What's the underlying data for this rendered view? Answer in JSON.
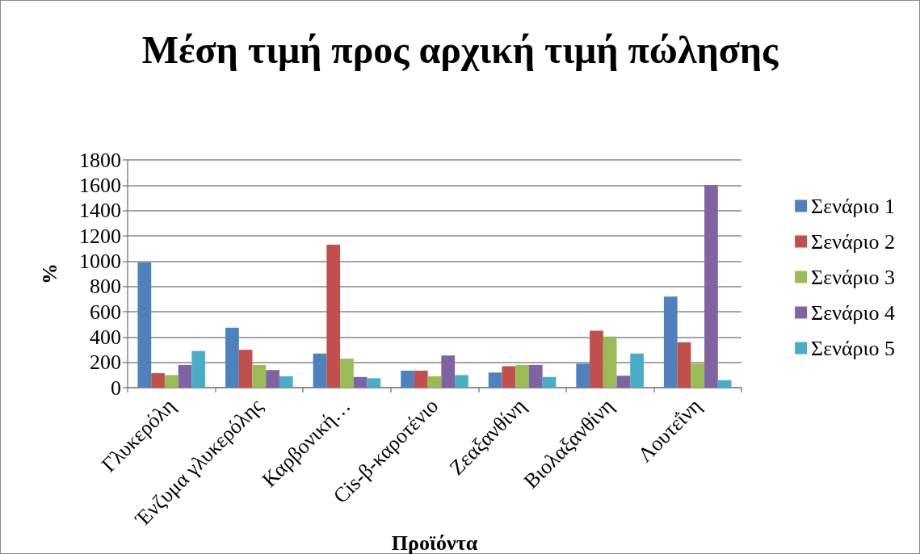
{
  "chart_data": {
    "type": "bar",
    "title": "Μέση τιμή προς αρχική τιμή πώλησης",
    "xlabel": "Προϊόντα",
    "ylabel": "%",
    "categories": [
      "Γλυκερόλη",
      "Ένζυμα γλυκερόλης",
      "Καρβονική…",
      "Cis-β-καροτένιο",
      "Ζεαξανθίνη",
      "Βιολαξανθίνη",
      "Λουτεΐνη"
    ],
    "series": [
      {
        "name": "Σενάριο 1",
        "color": "#4f81bd",
        "values": [
          990,
          475,
          270,
          135,
          120,
          190,
          720
        ]
      },
      {
        "name": "Σενάριο 2",
        "color": "#c0504d",
        "values": [
          115,
          300,
          1130,
          135,
          170,
          450,
          360
        ]
      },
      {
        "name": "Σενάριο 3",
        "color": "#9bbb59",
        "values": [
          100,
          180,
          230,
          90,
          180,
          405,
          190
        ]
      },
      {
        "name": "Σενάριο 4",
        "color": "#8064a2",
        "values": [
          180,
          140,
          85,
          255,
          180,
          95,
          1600
        ]
      },
      {
        "name": "Σενάριο 5",
        "color": "#4bacc6",
        "values": [
          290,
          90,
          75,
          100,
          85,
          270,
          60
        ]
      }
    ],
    "ylim": [
      0,
      1800
    ],
    "yticks": [
      0,
      200,
      400,
      600,
      800,
      1000,
      1200,
      1400,
      1600,
      1800
    ],
    "grid": "y",
    "legend": "right"
  }
}
